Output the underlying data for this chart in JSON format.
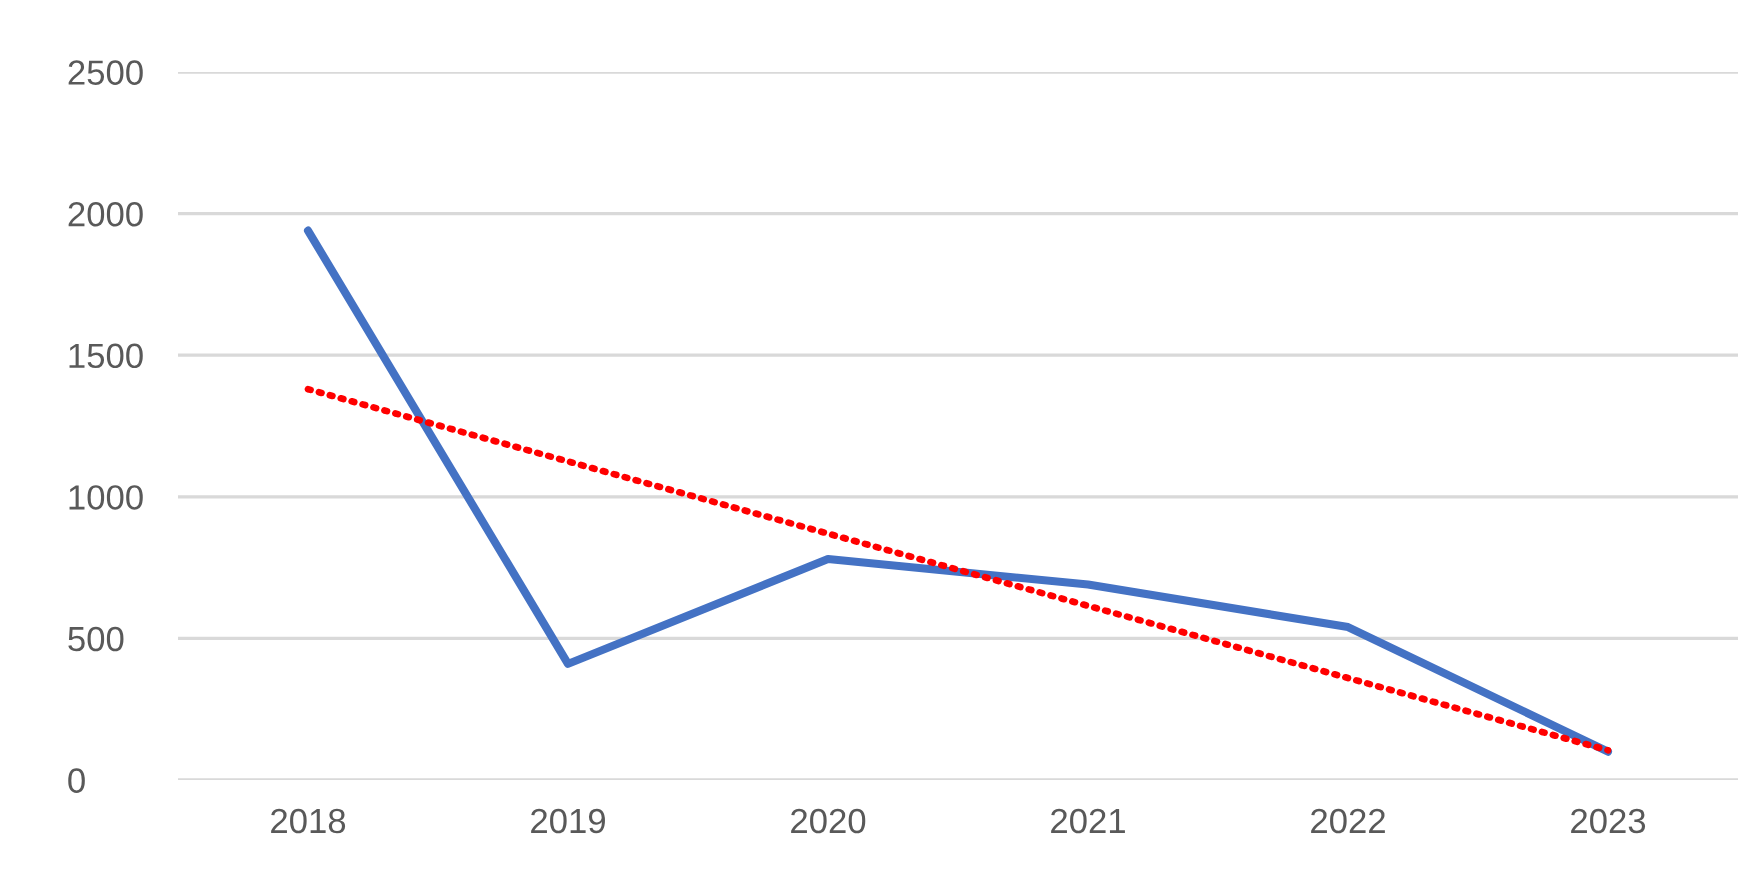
{
  "chart_data": {
    "type": "line",
    "categories": [
      "2018",
      "2019",
      "2020",
      "2021",
      "2022",
      "2023"
    ],
    "series": [
      {
        "color": "#4472c4",
        "line_style": "solid",
        "values": [
          1940,
          410,
          780,
          690,
          540,
          100
        ]
      },
      {
        "color": "#ff0000",
        "line_style": "dotted",
        "values": [
          1380,
          1125,
          870,
          615,
          360,
          105
        ]
      }
    ],
    "ylim": [
      0,
      2500
    ],
    "yticks": [
      0,
      500,
      1000,
      1500,
      2000,
      2500
    ],
    "grid": "y",
    "legend": false
  }
}
